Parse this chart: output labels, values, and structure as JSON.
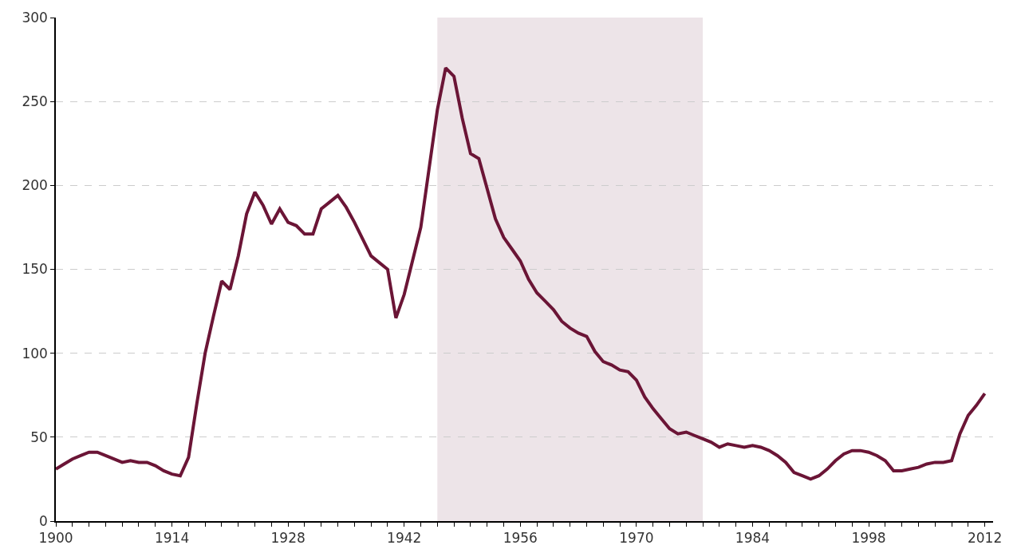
{
  "chart_data": {
    "type": "line",
    "x": [
      1900,
      1901,
      1902,
      1903,
      1904,
      1905,
      1906,
      1907,
      1908,
      1909,
      1910,
      1911,
      1912,
      1913,
      1914,
      1915,
      1916,
      1917,
      1918,
      1919,
      1920,
      1921,
      1922,
      1923,
      1924,
      1925,
      1926,
      1927,
      1928,
      1929,
      1930,
      1931,
      1932,
      1933,
      1934,
      1935,
      1936,
      1937,
      1938,
      1939,
      1940,
      1941,
      1942,
      1943,
      1944,
      1945,
      1946,
      1947,
      1948,
      1949,
      1950,
      1951,
      1952,
      1953,
      1954,
      1955,
      1956,
      1957,
      1958,
      1959,
      1960,
      1961,
      1962,
      1963,
      1964,
      1965,
      1966,
      1967,
      1968,
      1969,
      1970,
      1971,
      1972,
      1973,
      1974,
      1975,
      1976,
      1977,
      1978,
      1979,
      1980,
      1981,
      1982,
      1983,
      1984,
      1985,
      1986,
      1987,
      1988,
      1989,
      1990,
      1991,
      1992,
      1993,
      1994,
      1995,
      1996,
      1997,
      1998,
      1999,
      2000,
      2001,
      2002,
      2003,
      2004,
      2005,
      2006,
      2007,
      2008,
      2009,
      2010,
      2011,
      2012
    ],
    "series": [
      {
        "color": "#6b1536",
        "values": [
          31,
          34,
          37,
          39,
          41,
          41,
          39,
          37,
          35,
          36,
          35,
          35,
          33,
          30,
          28,
          27,
          38,
          70,
          100,
          122,
          143,
          138,
          158,
          183,
          196,
          188,
          177,
          186,
          178,
          176,
          171,
          171,
          186,
          190,
          194,
          187,
          178,
          168,
          158,
          154,
          150,
          121,
          135,
          155,
          175,
          210,
          245,
          270,
          265,
          240,
          219,
          216,
          198,
          180,
          169,
          162,
          155,
          144,
          136,
          131,
          126,
          119,
          115,
          112,
          110,
          101,
          95,
          93,
          90,
          89,
          84,
          74,
          67,
          61,
          55,
          52,
          53,
          51,
          49,
          47,
          44,
          46,
          45,
          44,
          45,
          44,
          42,
          39,
          35,
          29,
          27,
          25,
          27,
          31,
          36,
          40,
          42,
          42,
          41,
          39,
          36,
          30,
          30,
          31,
          32,
          34,
          35,
          35,
          36,
          52,
          63,
          69,
          76
        ]
      }
    ],
    "xlim": [
      1900,
      2013
    ],
    "xticks": [
      1900,
      {
        "value": 1902,
        "label": null
      },
      {
        "value": 1904,
        "label": null
      },
      {
        "value": 1906,
        "label": null
      },
      {
        "value": 1908,
        "label": null
      },
      {
        "value": 1910,
        "label": null
      },
      {
        "value": 1912,
        "label": null
      },
      1914,
      {
        "value": 1916,
        "label": null
      },
      {
        "value": 1918,
        "label": null
      },
      {
        "value": 1920,
        "label": null
      },
      {
        "value": 1922,
        "label": null
      },
      {
        "value": 1924,
        "label": null
      },
      {
        "value": 1926,
        "label": null
      },
      1928,
      {
        "value": 1930,
        "label": null
      },
      {
        "value": 1932,
        "label": null
      },
      {
        "value": 1934,
        "label": null
      },
      {
        "value": 1936,
        "label": null
      },
      {
        "value": 1938,
        "label": null
      },
      {
        "value": 1940,
        "label": null
      },
      1942,
      {
        "value": 1944,
        "label": null
      },
      {
        "value": 1946,
        "label": null
      },
      {
        "value": 1948,
        "label": null
      },
      {
        "value": 1950,
        "label": null
      },
      {
        "value": 1952,
        "label": null
      },
      {
        "value": 1954,
        "label": null
      },
      1956,
      {
        "value": 1958,
        "label": null
      },
      {
        "value": 1960,
        "label": null
      },
      {
        "value": 1962,
        "label": null
      },
      {
        "value": 1964,
        "label": null
      },
      {
        "value": 1966,
        "label": null
      },
      {
        "value": 1968,
        "label": null
      },
      1970,
      {
        "value": 1972,
        "label": null
      },
      {
        "value": 1974,
        "label": null
      },
      {
        "value": 1976,
        "label": null
      },
      {
        "value": 1978,
        "label": null
      },
      {
        "value": 1980,
        "label": null
      },
      {
        "value": 1982,
        "label": null
      },
      1984,
      {
        "value": 1986,
        "label": null
      },
      {
        "value": 1988,
        "label": null
      },
      {
        "value": 1990,
        "label": null
      },
      {
        "value": 1992,
        "label": null
      },
      {
        "value": 1994,
        "label": null
      },
      {
        "value": 1996,
        "label": null
      },
      1998,
      {
        "value": 2000,
        "label": null
      },
      {
        "value": 2002,
        "label": null
      },
      {
        "value": 2004,
        "label": null
      },
      {
        "value": 2006,
        "label": null
      },
      {
        "value": 2008,
        "label": null
      },
      {
        "value": 2010,
        "label": null
      },
      2012
    ],
    "ylim": [
      0,
      300
    ],
    "yticks": [
      0,
      50,
      100,
      150,
      200,
      250,
      300
    ],
    "grid": "y",
    "line_style": "solid",
    "bands": [
      {
        "axis": "x",
        "from": 1946,
        "to": 1978,
        "color": "#ede4e8"
      }
    ]
  }
}
